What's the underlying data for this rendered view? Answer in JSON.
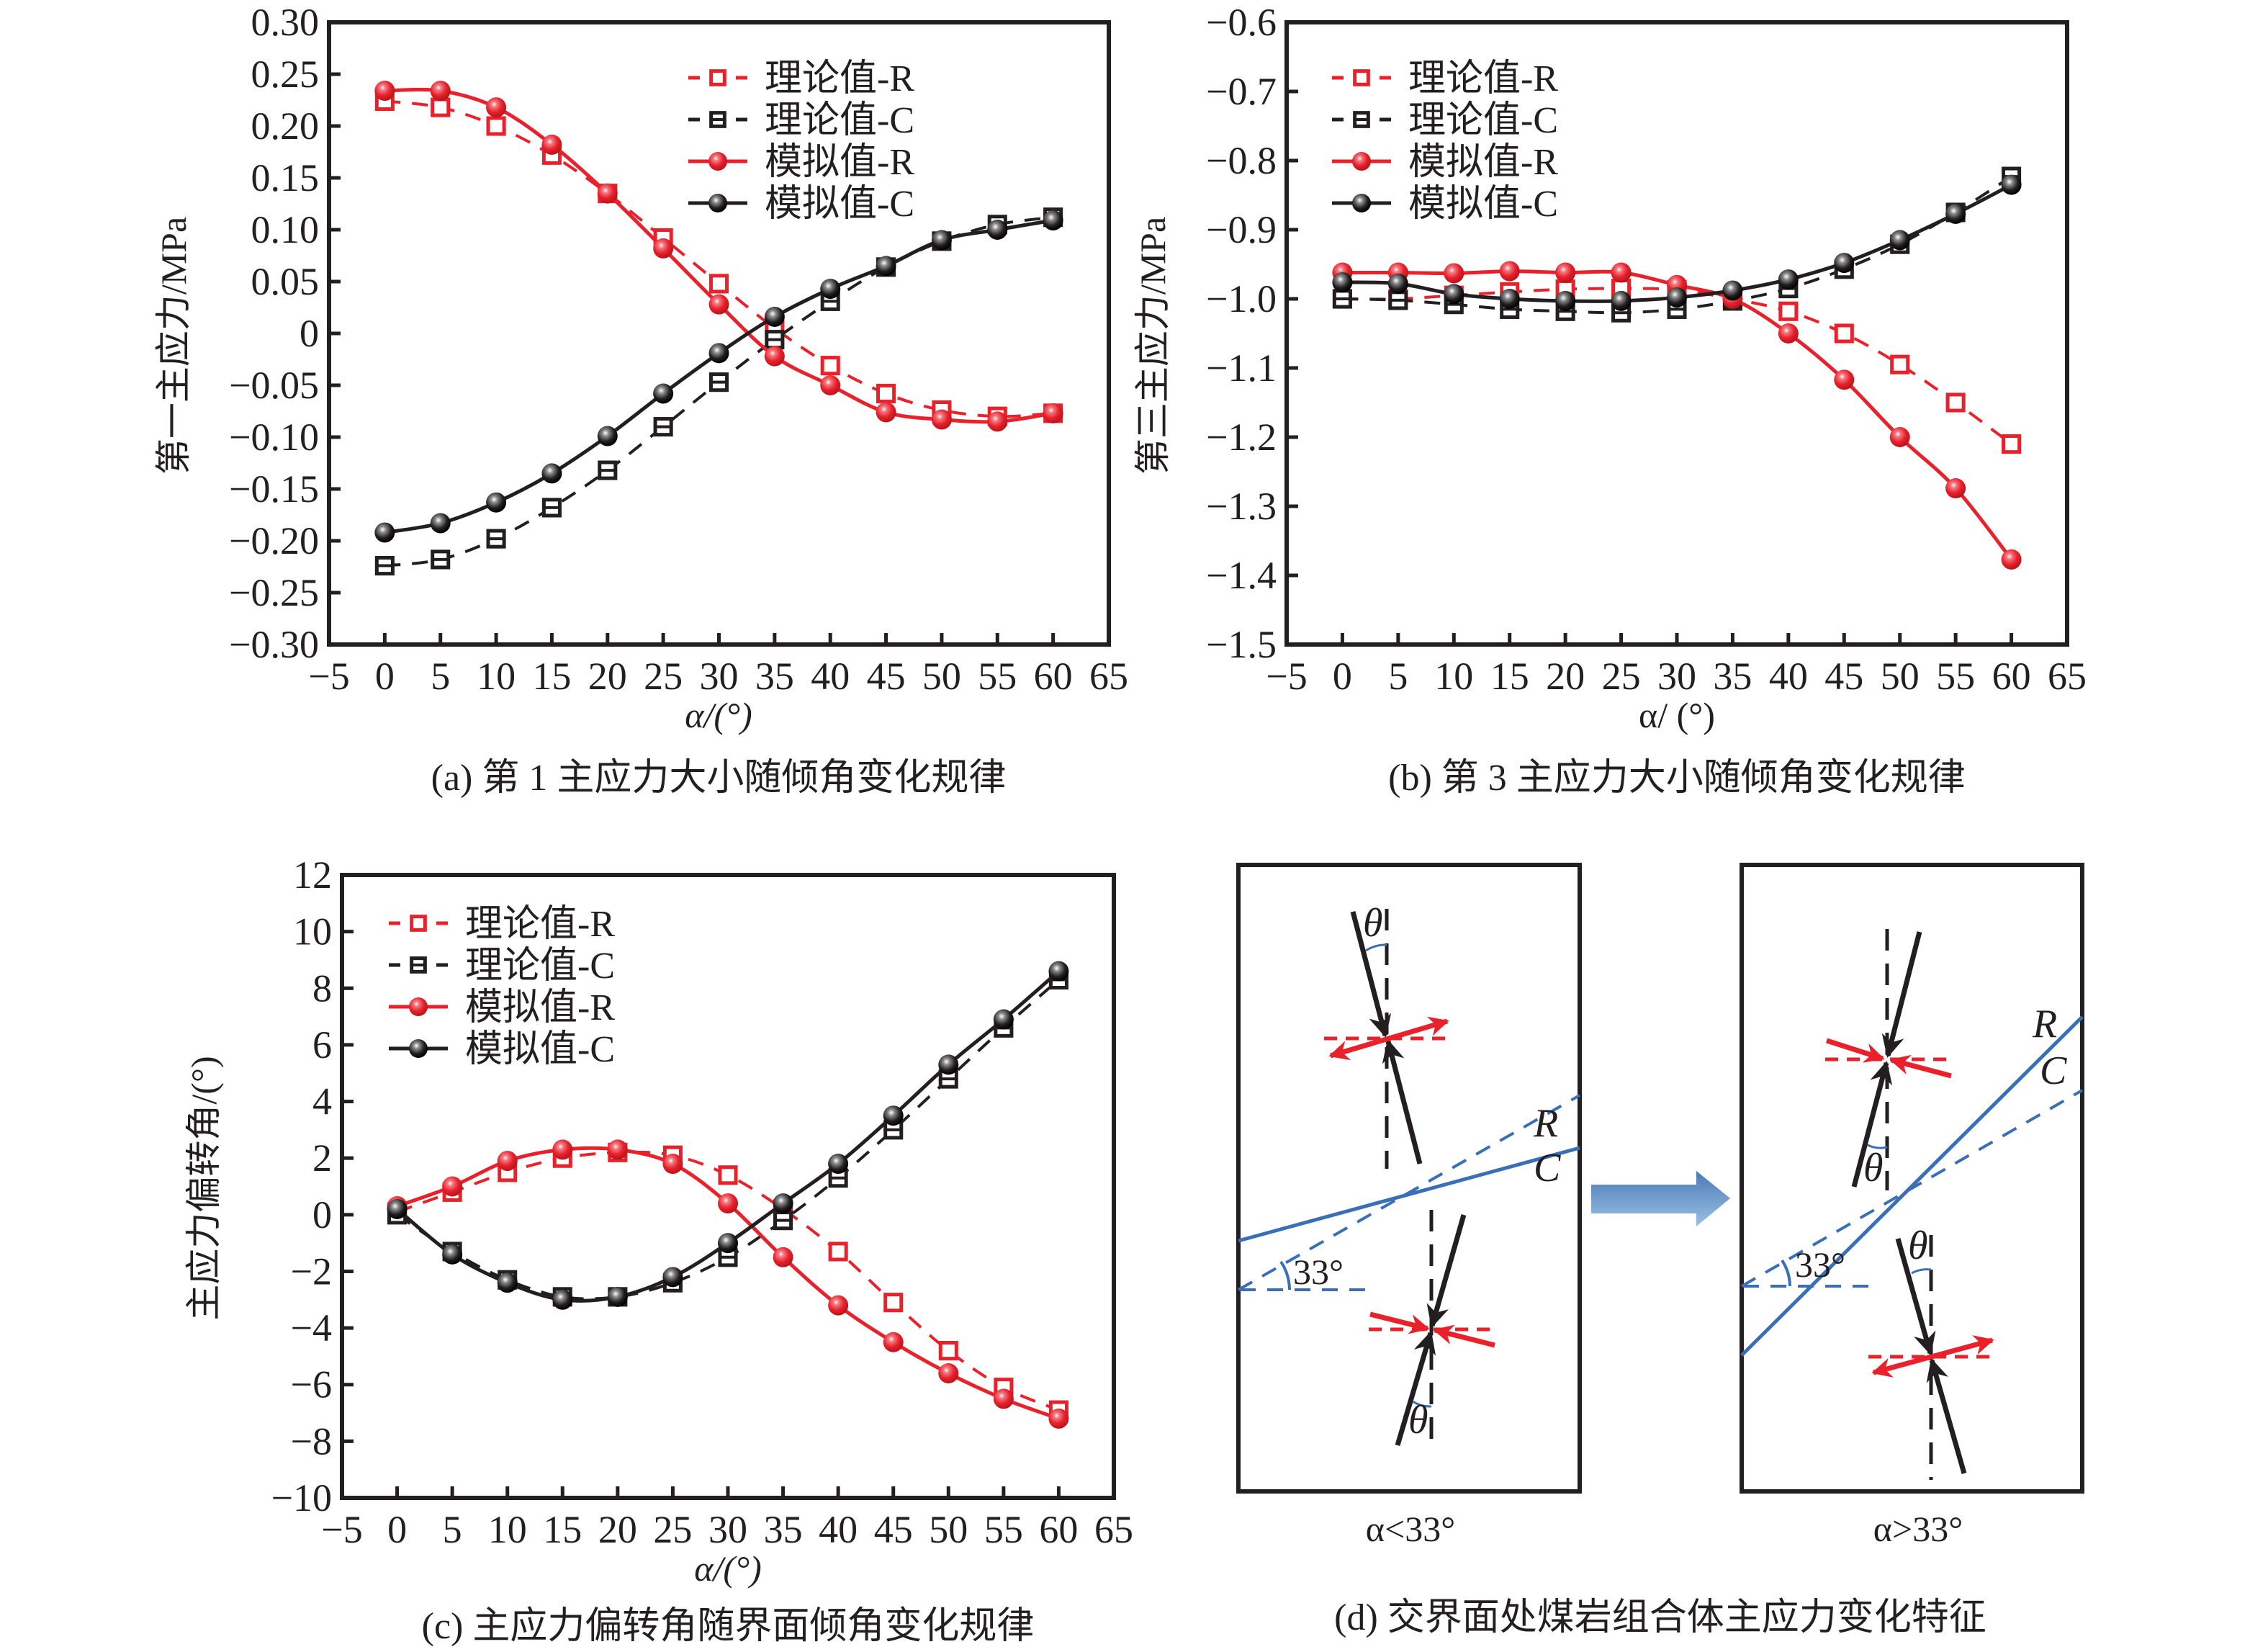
{
  "figure": {
    "colors": {
      "red": "#e8212b",
      "black": "#231f20",
      "blue": "#3a6fb8",
      "arrow_top": "#4a7ab5",
      "arrow_bottom": "#9ac0e4"
    }
  },
  "chart_data": [
    {
      "id": "a",
      "type": "line",
      "title": "",
      "caption": "(a) 第 1 主应力大小随倾角变化规律",
      "xlabel": "α/(°)",
      "ylabel": "第一主应力/MPa",
      "xlim": [
        -5,
        65
      ],
      "ylim": [
        -0.3,
        0.3
      ],
      "xticks": [
        -5,
        0,
        5,
        10,
        15,
        20,
        25,
        30,
        35,
        40,
        45,
        50,
        55,
        60,
        65
      ],
      "xtick_labels": [
        "−5",
        "0",
        "5",
        "10",
        "15",
        "20",
        "25",
        "30",
        "35",
        "40",
        "45",
        "50",
        "55",
        "60",
        "65"
      ],
      "yticks": [
        0.3,
        0.25,
        0.2,
        0.15,
        0.1,
        0.05,
        0,
        -0.05,
        -0.1,
        -0.15,
        -0.2,
        -0.25,
        -0.3
      ],
      "ytick_labels": [
        "0.30",
        "0.25",
        "0.20",
        "0.15",
        "0.10",
        "0.05",
        "0",
        "−0.05",
        "−0.10",
        "−0.15",
        "−0.20",
        "−0.25",
        "−0.30"
      ],
      "grid": false,
      "legend_position": "top-right",
      "x": [
        0,
        5,
        10,
        15,
        20,
        25,
        30,
        35,
        40,
        45,
        50,
        55,
        60
      ],
      "series": [
        {
          "name": "理论值-R",
          "color": "#e8212b",
          "style": "dashed",
          "marker": "open-square",
          "values": [
            0.224,
            0.218,
            0.2,
            0.172,
            0.135,
            0.092,
            0.048,
            0.005,
            -0.031,
            -0.058,
            -0.074,
            -0.08,
            -0.077
          ]
        },
        {
          "name": "理论值-C",
          "color": "#231f20",
          "style": "dashed",
          "marker": "half-square",
          "values": [
            -0.224,
            -0.218,
            -0.198,
            -0.168,
            -0.132,
            -0.09,
            -0.047,
            -0.006,
            0.031,
            0.064,
            0.089,
            0.105,
            0.112
          ]
        },
        {
          "name": "模拟值-R",
          "color": "#e8212b",
          "style": "solid",
          "marker": "sphere",
          "values": [
            0.234,
            0.234,
            0.218,
            0.182,
            0.135,
            0.082,
            0.028,
            -0.022,
            -0.05,
            -0.076,
            -0.083,
            -0.085,
            -0.077
          ]
        },
        {
          "name": "模拟值-C",
          "color": "#231f20",
          "style": "solid",
          "marker": "sphere",
          "values": [
            -0.192,
            -0.183,
            -0.163,
            -0.135,
            -0.099,
            -0.058,
            -0.019,
            0.016,
            0.043,
            0.065,
            0.09,
            0.1,
            0.109
          ]
        }
      ]
    },
    {
      "id": "b",
      "type": "line",
      "title": "",
      "caption": "(b) 第 3 主应力大小随倾角变化规律",
      "xlabel": "α/ (°)",
      "ylabel": "第三主应力/MPa",
      "xlim": [
        -5,
        65
      ],
      "ylim": [
        -1.5,
        -0.6
      ],
      "xticks": [
        -5,
        0,
        5,
        10,
        15,
        20,
        25,
        30,
        35,
        40,
        45,
        50,
        55,
        60,
        65
      ],
      "xtick_labels": [
        "−5",
        "0",
        "5",
        "10",
        "15",
        "20",
        "25",
        "30",
        "35",
        "40",
        "45",
        "50",
        "55",
        "60",
        "65"
      ],
      "yticks": [
        -0.6,
        -0.7,
        -0.8,
        -0.9,
        -1.0,
        -1.1,
        -1.2,
        -1.3,
        -1.4,
        -1.5
      ],
      "ytick_labels": [
        "−0.6",
        "−0.7",
        "−0.8",
        "−0.9",
        "−1.0",
        "−1.1",
        "−1.2",
        "−1.3",
        "−1.4",
        "−1.5"
      ],
      "grid": false,
      "legend_position": "top-left",
      "x": [
        0,
        5,
        10,
        15,
        20,
        25,
        30,
        35,
        40,
        45,
        50,
        55,
        60
      ],
      "series": [
        {
          "name": "理论值-R",
          "color": "#e8212b",
          "style": "dashed",
          "marker": "open-square",
          "values": [
            -1.0,
            -1.0,
            -0.995,
            -0.99,
            -0.986,
            -0.985,
            -0.987,
            -1.0,
            -1.018,
            -1.05,
            -1.095,
            -1.15,
            -1.21
          ]
        },
        {
          "name": "理论值-C",
          "color": "#231f20",
          "style": "dashed",
          "marker": "half-square",
          "values": [
            -1.0,
            -1.002,
            -1.008,
            -1.015,
            -1.018,
            -1.02,
            -1.015,
            -1.003,
            -0.985,
            -0.957,
            -0.921,
            -0.875,
            -0.823
          ]
        },
        {
          "name": "模拟值-R",
          "color": "#e8212b",
          "style": "solid",
          "marker": "sphere",
          "values": [
            -0.962,
            -0.962,
            -0.963,
            -0.96,
            -0.962,
            -0.962,
            -0.98,
            -1.0,
            -1.05,
            -1.117,
            -1.2,
            -1.274,
            -1.377
          ]
        },
        {
          "name": "模拟值-C",
          "color": "#231f20",
          "style": "solid",
          "marker": "sphere",
          "values": [
            -0.976,
            -0.978,
            -0.993,
            -1.0,
            -1.003,
            -1.003,
            -0.998,
            -0.988,
            -0.972,
            -0.948,
            -0.915,
            -0.877,
            -0.835
          ]
        }
      ]
    },
    {
      "id": "c",
      "type": "line",
      "title": "",
      "caption": "(c) 主应力偏转角随界面倾角变化规律",
      "xlabel": "α/(°)",
      "ylabel": "主应力偏转角/(°)",
      "xlim": [
        -5,
        65
      ],
      "ylim": [
        -10,
        12
      ],
      "xticks": [
        -5,
        0,
        5,
        10,
        15,
        20,
        25,
        30,
        35,
        40,
        45,
        50,
        55,
        60,
        65
      ],
      "xtick_labels": [
        "−5",
        "0",
        "5",
        "10",
        "15",
        "20",
        "25",
        "30",
        "35",
        "40",
        "45",
        "50",
        "55",
        "60",
        "65"
      ],
      "yticks": [
        12,
        10,
        8,
        6,
        4,
        2,
        0,
        -2,
        -4,
        -6,
        -8,
        -10
      ],
      "ytick_labels": [
        "12",
        "10",
        "8",
        "6",
        "4",
        "2",
        "0",
        "−2",
        "−4",
        "−6",
        "−8",
        "−10"
      ],
      "grid": false,
      "legend_position": "top-left",
      "x": [
        0,
        5,
        10,
        15,
        20,
        25,
        30,
        35,
        40,
        45,
        50,
        55,
        60
      ],
      "series": [
        {
          "name": "理论值-R",
          "color": "#e8212b",
          "style": "dashed",
          "marker": "open-square",
          "values": [
            0.1,
            0.8,
            1.5,
            2.0,
            2.2,
            2.1,
            1.4,
            0.2,
            -1.3,
            -3.1,
            -4.8,
            -6.1,
            -6.9
          ]
        },
        {
          "name": "理论值-C",
          "color": "#231f20",
          "style": "dashed",
          "marker": "half-square",
          "values": [
            0.0,
            -1.3,
            -2.3,
            -2.9,
            -2.9,
            -2.4,
            -1.5,
            -0.2,
            1.3,
            3.0,
            4.8,
            6.6,
            8.3
          ]
        },
        {
          "name": "模拟值-R",
          "color": "#e8212b",
          "style": "solid",
          "marker": "sphere",
          "values": [
            0.3,
            1.0,
            1.9,
            2.3,
            2.3,
            1.8,
            0.4,
            -1.5,
            -3.2,
            -4.5,
            -5.6,
            -6.5,
            -7.2
          ]
        },
        {
          "name": "模拟值-C",
          "color": "#231f20",
          "style": "solid",
          "marker": "sphere",
          "values": [
            0.2,
            -1.4,
            -2.4,
            -3.0,
            -2.9,
            -2.2,
            -1.0,
            0.4,
            1.8,
            3.5,
            5.3,
            6.9,
            8.6
          ]
        }
      ]
    }
  ],
  "diagram": {
    "caption": "(d)  交界面处煤岩组合体主应力变化特征",
    "left_panel": {
      "subcaption": "α<33°",
      "angle_label": "33°",
      "theta_label": "θ",
      "line_labels": [
        "R",
        "C"
      ]
    },
    "right_panel": {
      "subcaption": "α>33°",
      "angle_label": "33°",
      "theta_label": "θ",
      "line_labels": [
        "R",
        "C"
      ]
    },
    "transition_arrow": "right-arrow"
  }
}
